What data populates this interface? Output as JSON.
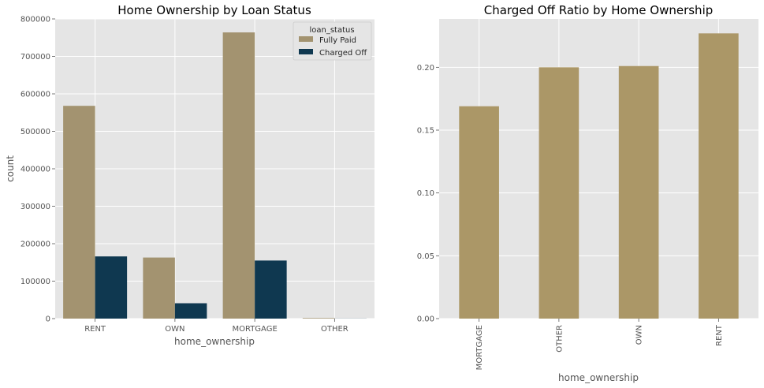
{
  "chart_data": [
    {
      "type": "bar",
      "title": "Home Ownership by Loan Status",
      "xlabel": "home_ownership",
      "ylabel": "count",
      "categories": [
        "RENT",
        "OWN",
        "MORTGAGE",
        "OTHER"
      ],
      "series": [
        {
          "name": "Fully Paid",
          "color": "#a39370",
          "values": [
            568000,
            163000,
            764000,
            1500
          ]
        },
        {
          "name": "Charged Off",
          "color": "#0f3850",
          "values": [
            166000,
            41000,
            155000,
            300
          ]
        }
      ],
      "ylim": [
        0,
        800000
      ],
      "yticks": [
        "0",
        "100000",
        "200000",
        "300000",
        "400000",
        "500000",
        "600000",
        "700000",
        "800000"
      ],
      "legend": {
        "title": "loan_status",
        "placement": "top-right"
      },
      "grid": true
    },
    {
      "type": "bar",
      "title": "Charged Off Ratio by Home Ownership",
      "xlabel": "home_ownership",
      "ylabel": "",
      "categories": [
        "MORTGAGE",
        "OTHER",
        "OWN",
        "RENT"
      ],
      "color": "#ab9767",
      "values": [
        0.169,
        0.2,
        0.201,
        0.227
      ],
      "ylim": [
        0,
        0.2385
      ],
      "yticks": [
        "0.00",
        "0.05",
        "0.10",
        "0.15",
        "0.20"
      ],
      "grid": true
    }
  ]
}
